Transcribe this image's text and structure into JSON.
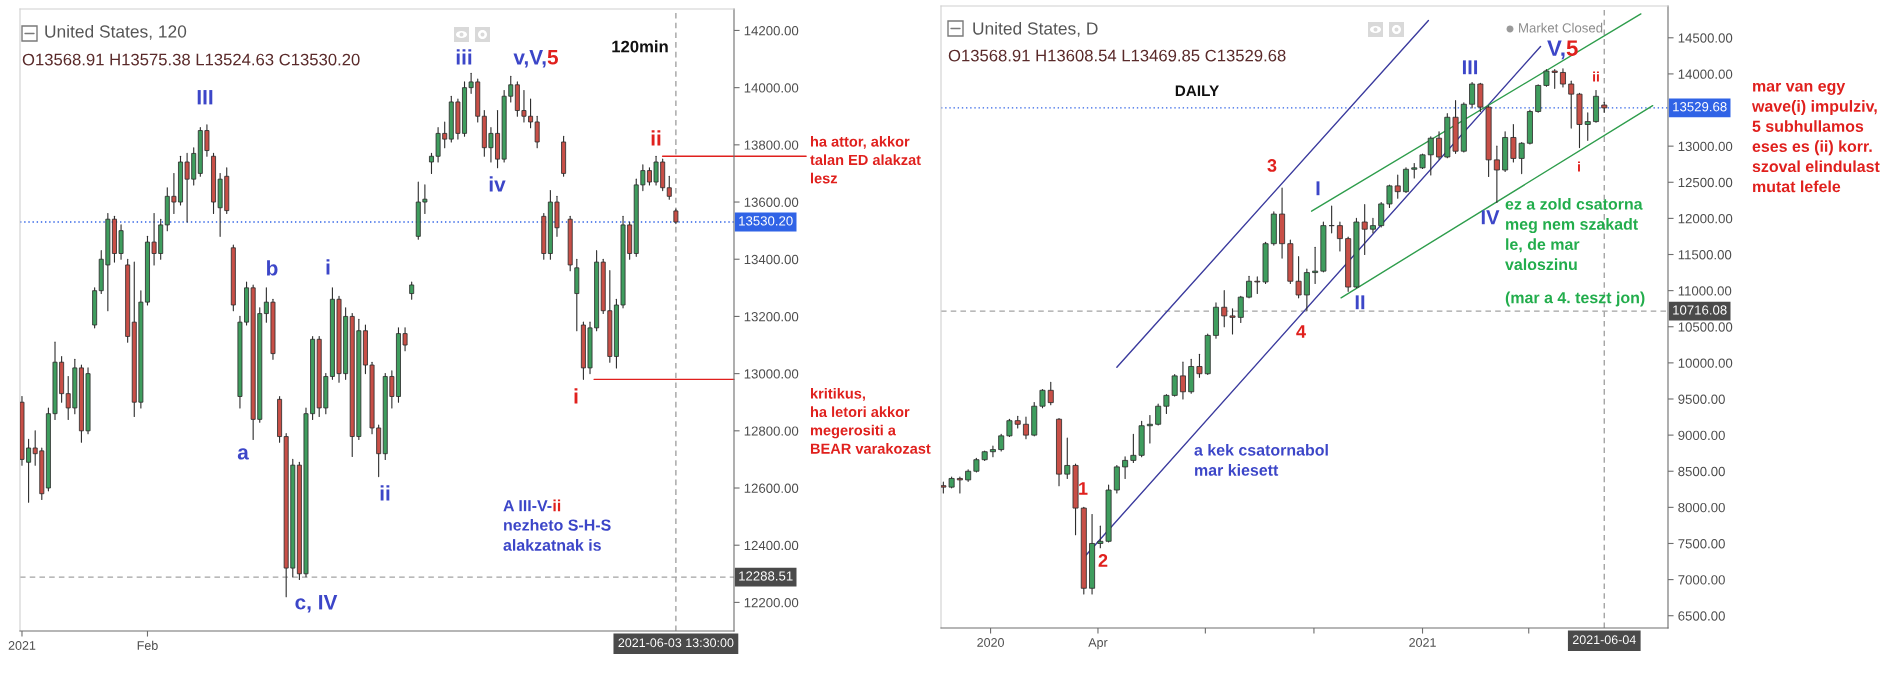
{
  "chart_data": [
    {
      "type": "candlestick",
      "title": "United States, 120",
      "subtitle": "O13568.91 H13575.38 L13524.63 C13530.20",
      "categories": [
        "2021",
        null,
        null,
        null,
        null,
        null,
        null,
        null,
        null,
        null,
        null,
        null,
        null,
        null,
        null,
        null,
        null,
        null,
        null,
        "Feb",
        null,
        null,
        null,
        null,
        null,
        null,
        null,
        null,
        null,
        null,
        null,
        null,
        null,
        null,
        null,
        null,
        null,
        null,
        null,
        null,
        null,
        null,
        null,
        null,
        null,
        null,
        null,
        null,
        null,
        null,
        null,
        null,
        null,
        null,
        null,
        null,
        null,
        null,
        null,
        null,
        null,
        null,
        null,
        null,
        null,
        null,
        null,
        null,
        null,
        null,
        null,
        null,
        null,
        null,
        null,
        null,
        null,
        null,
        null,
        null,
        null,
        null,
        null,
        null,
        null,
        null,
        null,
        null,
        null,
        null,
        null,
        null,
        null,
        null,
        null,
        null,
        null,
        null,
        null,
        "2021-06-03 13:30:00"
      ],
      "ohlc": [
        [
          12900,
          12920,
          12680,
          12700
        ],
        [
          12690,
          12770,
          12550,
          12740
        ],
        [
          12740,
          12800,
          12680,
          12720
        ],
        [
          12730,
          12740,
          12560,
          12580
        ],
        [
          12600,
          12880,
          12590,
          12860
        ],
        [
          12860,
          13110,
          12840,
          13040
        ],
        [
          13040,
          13060,
          12900,
          12930
        ],
        [
          12930,
          12990,
          12840,
          12880
        ],
        [
          12880,
          13050,
          12860,
          13020
        ],
        [
          13020,
          13030,
          12760,
          12800
        ],
        [
          12800,
          13020,
          12790,
          13000
        ],
        [
          13170,
          13300,
          13160,
          13290
        ],
        [
          13290,
          13430,
          13280,
          13400
        ],
        [
          13380,
          13560,
          13220,
          13540
        ],
        [
          13540,
          13550,
          13390,
          13420
        ],
        [
          13420,
          13520,
          13400,
          13500
        ],
        [
          13380,
          13400,
          13110,
          13130
        ],
        [
          13180,
          13390,
          12850,
          12900
        ],
        [
          12900,
          13290,
          12880,
          13250
        ],
        [
          13250,
          13480,
          13240,
          13460
        ],
        [
          13460,
          13560,
          13380,
          13420
        ],
        [
          13420,
          13540,
          13400,
          13520
        ],
        [
          13520,
          13650,
          13500,
          13620
        ],
        [
          13620,
          13700,
          13560,
          13600
        ],
        [
          13600,
          13760,
          13590,
          13740
        ],
        [
          13740,
          13770,
          13530,
          13680
        ],
        [
          13680,
          13790,
          13660,
          13770
        ],
        [
          13700,
          13860,
          13690,
          13850
        ],
        [
          13850,
          13870,
          13760,
          13780
        ],
        [
          13760,
          13770,
          13560,
          13600
        ],
        [
          13580,
          13700,
          13480,
          13680
        ],
        [
          13690,
          13720,
          13560,
          13570
        ],
        [
          13440,
          13450,
          13220,
          13240
        ],
        [
          12920,
          13200,
          12880,
          13180
        ],
        [
          13180,
          13320,
          13170,
          13300
        ],
        [
          13300,
          13310,
          12770,
          12840
        ],
        [
          12840,
          13230,
          12830,
          13210
        ],
        [
          13210,
          13300,
          13180,
          13250
        ],
        [
          13250,
          13260,
          13050,
          13070
        ],
        [
          12910,
          12920,
          12760,
          12780
        ],
        [
          12780,
          12790,
          12220,
          12320
        ],
        [
          12320,
          12700,
          12290,
          12680
        ],
        [
          12680,
          12690,
          12280,
          12300
        ],
        [
          12300,
          12880,
          12290,
          12860
        ],
        [
          12860,
          13130,
          12840,
          13120
        ],
        [
          13120,
          13130,
          12850,
          12880
        ],
        [
          12880,
          13000,
          12860,
          12990
        ],
        [
          12990,
          13300,
          12980,
          13260
        ],
        [
          13260,
          13270,
          12970,
          13000
        ],
        [
          13000,
          13230,
          12980,
          13200
        ],
        [
          13200,
          13210,
          12710,
          12780
        ],
        [
          12780,
          13190,
          12770,
          13150
        ],
        [
          13150,
          13170,
          13000,
          13030
        ],
        [
          13030,
          13040,
          12790,
          12810
        ],
        [
          12810,
          12820,
          12640,
          12720
        ],
        [
          12720,
          13000,
          12700,
          12990
        ],
        [
          12990,
          13010,
          12880,
          12920
        ],
        [
          12920,
          13160,
          12900,
          13140
        ],
        [
          13140,
          13160,
          13080,
          13100
        ],
        [
          13280,
          13320,
          13260,
          13310
        ],
        [
          13480,
          13670,
          13470,
          13600
        ],
        [
          13600,
          13660,
          13560,
          13610
        ],
        [
          13740,
          13770,
          13700,
          13760
        ],
        [
          13760,
          13860,
          13740,
          13840
        ],
        [
          13840,
          13880,
          13790,
          13820
        ],
        [
          13820,
          13970,
          13810,
          13950
        ],
        [
          13950,
          13960,
          13820,
          13840
        ],
        [
          13840,
          14020,
          13830,
          14000
        ],
        [
          14000,
          14050,
          13980,
          14020
        ],
        [
          14020,
          14030,
          13880,
          13900
        ],
        [
          13900,
          13920,
          13760,
          13790
        ],
        [
          13790,
          13860,
          13740,
          13840
        ],
        [
          13840,
          13920,
          13720,
          13750
        ],
        [
          13750,
          13990,
          13740,
          13970
        ],
        [
          13970,
          14040,
          13950,
          14010
        ],
        [
          14010,
          14020,
          13900,
          13920
        ],
        [
          13920,
          13990,
          13880,
          13900
        ],
        [
          13900,
          13960,
          13860,
          13880
        ],
        [
          13880,
          13900,
          13790,
          13810
        ],
        [
          13550,
          13560,
          13400,
          13420
        ],
        [
          13420,
          13640,
          13400,
          13600
        ],
        [
          13600,
          13620,
          13480,
          13510
        ],
        [
          13810,
          13830,
          13690,
          13700
        ],
        [
          13540,
          13550,
          13360,
          13380
        ],
        [
          13280,
          13400,
          13150,
          13370
        ],
        [
          13170,
          13180,
          12980,
          13020
        ],
        [
          13020,
          13180,
          13000,
          13160
        ],
        [
          13160,
          13430,
          13150,
          13390
        ],
        [
          13390,
          13400,
          13210,
          13220
        ],
        [
          13220,
          13360,
          13040,
          13060
        ],
        [
          13060,
          13260,
          13020,
          13240
        ],
        [
          13240,
          13550,
          13230,
          13520
        ],
        [
          13520,
          13530,
          13400,
          13420
        ],
        [
          13420,
          13680,
          13410,
          13660
        ],
        [
          13660,
          13730,
          13640,
          13710
        ],
        [
          13710,
          13720,
          13660,
          13670
        ],
        [
          13670,
          13760,
          13660,
          13740
        ],
        [
          13740,
          13750,
          13640,
          13650
        ],
        [
          13650,
          13690,
          13610,
          13620
        ],
        [
          13568.91,
          13575.38,
          13524.63,
          13530.2
        ]
      ],
      "ylim": [
        12100,
        14275
      ],
      "yticks": [
        {
          "value": 12200,
          "label": "12200.00"
        },
        {
          "value": 12400,
          "label": "12400.00"
        },
        {
          "value": 12600,
          "label": "12600.00"
        },
        {
          "value": 12800,
          "label": "12800.00"
        },
        {
          "value": 13000,
          "label": "13000.00"
        },
        {
          "value": 13200,
          "label": "13200.00"
        },
        {
          "value": 13400,
          "label": "13400.00"
        },
        {
          "value": 13600,
          "label": "13600.00"
        },
        {
          "value": 13800,
          "label": "13800.00"
        },
        {
          "value": 14000,
          "label": "14000.00"
        },
        {
          "value": 14200,
          "label": "14200.00"
        }
      ],
      "ref_lines": [
        {
          "axis": "y",
          "value": 13530.2,
          "label": "13530.20",
          "color": "#3063e6",
          "line_style": "dotted"
        },
        {
          "axis": "y",
          "value": 12288.51,
          "label": "12288.51",
          "color": "#a3a3a3",
          "line_style": "dashed"
        },
        {
          "axis": "x",
          "value": "2021-06-03 13:30:00",
          "color": "#a3a3a3",
          "line_style": "dashed"
        },
        {
          "axis": "y",
          "value": 13760,
          "label": "ha attor, akkor\ntalan ED alakzat\nlesz",
          "color": "#e0201d"
        },
        {
          "axis": "y",
          "value": 12980,
          "label": "kritikus,\nha letori akkor\nmegerositi a\nBEAR varakozast",
          "color": "#e0201d"
        }
      ],
      "annotations": [
        "III",
        "a",
        "b",
        "c, IV",
        "i",
        "ii",
        "iii",
        "iv",
        "v,V,",
        "5",
        "i",
        "ii",
        "120min",
        "A III-V-",
        "ii",
        "nezheto S-H-S\nalakzatnak is"
      ]
    },
    {
      "type": "candlestick",
      "title": "United States, D",
      "subtitle": "O13568.91 H13608.54 L13469.85 C13529.68",
      "x": [
        "2019-11-22",
        "2019-11-29",
        "2019-12-06",
        "2019-12-13",
        "2019-12-20",
        "2019-12-27",
        "2020-01-03",
        "2020-01-10",
        "2020-01-17",
        "2020-01-24",
        "2020-01-31",
        "2020-02-07",
        "2020-02-14",
        "2020-02-21",
        "2020-02-28",
        "2020-03-06",
        "2020-03-13",
        "2020-03-20",
        "2020-03-27",
        "2020-04-03",
        "2020-04-10",
        "2020-04-17",
        "2020-04-24",
        "2020-05-01",
        "2020-05-08",
        "2020-05-15",
        "2020-05-22",
        "2020-05-29",
        "2020-06-05",
        "2020-06-12",
        "2020-06-19",
        "2020-06-26",
        "2020-07-03",
        "2020-07-10",
        "2020-07-17",
        "2020-07-24",
        "2020-07-31",
        "2020-08-07",
        "2020-08-14",
        "2020-08-21",
        "2020-08-28",
        "2020-09-04",
        "2020-09-11",
        "2020-09-18",
        "2020-09-25",
        "2020-10-02",
        "2020-10-09",
        "2020-10-16",
        "2020-10-23",
        "2020-10-30",
        "2020-11-06",
        "2020-11-13",
        "2020-11-20",
        "2020-11-27",
        "2020-12-04",
        "2020-12-11",
        "2020-12-18",
        "2020-12-25",
        "2021-01-01",
        "2021-01-08",
        "2021-01-15",
        "2021-01-22",
        "2021-01-29",
        "2021-02-05",
        "2021-02-12",
        "2021-02-19",
        "2021-02-26",
        "2021-03-05",
        "2021-03-12",
        "2021-03-19",
        "2021-03-26",
        "2021-04-02",
        "2021-04-09",
        "2021-04-16",
        "2021-04-23",
        "2021-04-30",
        "2021-05-07",
        "2021-05-14",
        "2021-05-21",
        "2021-05-28",
        "2021-06-04"
      ],
      "ohlc": [
        [
          8300,
          8350,
          8200,
          8280
        ],
        [
          8280,
          8420,
          8270,
          8400
        ],
        [
          8400,
          8420,
          8200,
          8380
        ],
        [
          8380,
          8520,
          8360,
          8500
        ],
        [
          8500,
          8680,
          8490,
          8660
        ],
        [
          8660,
          8780,
          8650,
          8770
        ],
        [
          8770,
          8850,
          8700,
          8800
        ],
        [
          8800,
          9010,
          8780,
          8990
        ],
        [
          8990,
          9220,
          8980,
          9200
        ],
        [
          9200,
          9260,
          9100,
          9150
        ],
        [
          9150,
          9250,
          8950,
          9000
        ],
        [
          9000,
          9450,
          8990,
          9400
        ],
        [
          9400,
          9630,
          9380,
          9620
        ],
        [
          9620,
          9730,
          9420,
          9450
        ],
        [
          9220,
          9230,
          8300,
          8460
        ],
        [
          8460,
          8960,
          8400,
          8580
        ],
        [
          8580,
          8600,
          7620,
          7990
        ],
        [
          7990,
          8000,
          6800,
          6880
        ],
        [
          6880,
          7900,
          6800,
          7500
        ],
        [
          7500,
          7740,
          7440,
          7530
        ],
        [
          7530,
          8310,
          7520,
          8240
        ],
        [
          8240,
          8580,
          8200,
          8560
        ],
        [
          8560,
          8700,
          8400,
          8650
        ],
        [
          8650,
          9010,
          8620,
          8720
        ],
        [
          8720,
          9190,
          8700,
          9130
        ],
        [
          9130,
          9270,
          8890,
          9150
        ],
        [
          9150,
          9430,
          9140,
          9400
        ],
        [
          9400,
          9560,
          9300,
          9550
        ],
        [
          9550,
          9840,
          9540,
          9820
        ],
        [
          9820,
          10010,
          9500,
          9600
        ],
        [
          9600,
          10050,
          9580,
          9950
        ],
        [
          9950,
          10120,
          9800,
          9850
        ],
        [
          9850,
          10400,
          9840,
          10380
        ],
        [
          10380,
          10830,
          10340,
          10770
        ],
        [
          10770,
          11000,
          10500,
          10650
        ],
        [
          10650,
          10750,
          10400,
          10630
        ],
        [
          10630,
          10920,
          10560,
          10910
        ],
        [
          10910,
          11200,
          10900,
          11130
        ],
        [
          11130,
          11190,
          10960,
          11120
        ],
        [
          11120,
          11670,
          11100,
          11650
        ],
        [
          11650,
          12090,
          11630,
          12060
        ],
        [
          12060,
          12420,
          11450,
          11650
        ],
        [
          11650,
          11700,
          11100,
          11130
        ],
        [
          11130,
          11470,
          10900,
          10940
        ],
        [
          10940,
          11300,
          10720,
          11250
        ],
        [
          11250,
          11600,
          11100,
          11270
        ],
        [
          11270,
          11950,
          11260,
          11900
        ],
        [
          11900,
          12170,
          11800,
          11900
        ],
        [
          11900,
          11950,
          11550,
          11720
        ],
        [
          11720,
          11740,
          10990,
          11050
        ],
        [
          11050,
          12000,
          11040,
          11950
        ],
        [
          11950,
          12190,
          11500,
          11850
        ],
        [
          11850,
          12000,
          11800,
          11900
        ],
        [
          11900,
          12220,
          11880,
          12200
        ],
        [
          12200,
          12460,
          12150,
          12450
        ],
        [
          12450,
          12600,
          12280,
          12370
        ],
        [
          12370,
          12700,
          12360,
          12680
        ],
        [
          12680,
          12760,
          12560,
          12700
        ],
        [
          12700,
          12890,
          12690,
          12880
        ],
        [
          12880,
          13130,
          12600,
          13110
        ],
        [
          13110,
          13200,
          12820,
          12850
        ],
        [
          12850,
          13450,
          12840,
          13400
        ],
        [
          13400,
          13630,
          12900,
          12930
        ],
        [
          12930,
          13600,
          12920,
          13580
        ],
        [
          13580,
          13880,
          13530,
          13860
        ],
        [
          13860,
          13870,
          13480,
          13540
        ],
        [
          13540,
          13560,
          12580,
          12810
        ],
        [
          12810,
          13000,
          12220,
          12670
        ],
        [
          12670,
          13200,
          12650,
          13120
        ],
        [
          13120,
          13300,
          12780,
          12830
        ],
        [
          12830,
          13050,
          12620,
          13040
        ],
        [
          13040,
          13500,
          13030,
          13480
        ],
        [
          13480,
          13850,
          13470,
          13840
        ],
        [
          13840,
          14060,
          13830,
          14040
        ],
        [
          14040,
          14060,
          13800,
          14020
        ],
        [
          14020,
          14070,
          13820,
          13860
        ],
        [
          13860,
          13900,
          13250,
          13720
        ],
        [
          13720,
          13730,
          12980,
          13300
        ],
        [
          13300,
          13460,
          13080,
          13340
        ],
        [
          13340,
          13770,
          13330,
          13690
        ],
        [
          13568.91,
          13608.54,
          13469.85,
          13529.68
        ]
      ],
      "xlim": [
        "2019-11-20",
        "2021-07-28"
      ],
      "xticks": [
        {
          "value": "2020-01-01",
          "label": "2020"
        },
        {
          "value": "2020-04-01",
          "label": "Apr"
        },
        {
          "value": "2020-07-01",
          "label": null
        },
        {
          "value": "2020-10-01",
          "label": null
        },
        {
          "value": "2021-01-01",
          "label": "2021"
        },
        {
          "value": "2021-04-01",
          "label": null
        }
      ],
      "ylim": [
        6330,
        14940
      ],
      "yticks": [
        {
          "value": 6500,
          "label": "6500.00"
        },
        {
          "value": 7000,
          "label": "7000.00"
        },
        {
          "value": 7500,
          "label": "7500.00"
        },
        {
          "value": 8000,
          "label": "8000.00"
        },
        {
          "value": 8500,
          "label": "8500.00"
        },
        {
          "value": 9000,
          "label": "9000.00"
        },
        {
          "value": 9500,
          "label": "9500.00"
        },
        {
          "value": 10000,
          "label": "10000.00"
        },
        {
          "value": 10500,
          "label": "10500.00"
        },
        {
          "value": 11000,
          "label": "11000.00"
        },
        {
          "value": 11500,
          "label": "11500.00"
        },
        {
          "value": 12000,
          "label": "12000.00"
        },
        {
          "value": 12500,
          "label": "12500.00"
        },
        {
          "value": 13000,
          "label": "13000.00"
        },
        {
          "value": 14000,
          "label": "14000.00"
        },
        {
          "value": 14500,
          "label": "14500.00"
        }
      ],
      "series": [
        {
          "type": "line",
          "x": [
            "2020-04-17",
            "2021-01-06"
          ],
          "values": [
            9940,
            14740
          ],
          "color": "#3b3b9e"
        },
        {
          "type": "line",
          "x": [
            "2020-03-22",
            "2021-04-11"
          ],
          "values": [
            7340,
            14380
          ],
          "color": "#3b3b9e"
        },
        {
          "type": "line",
          "x": [
            "2020-09-29",
            "2021-07-05"
          ],
          "values": [
            12100,
            14830
          ],
          "color": "#2e9d4c"
        },
        {
          "type": "line",
          "x": [
            "2020-10-24",
            "2021-07-15"
          ],
          "values": [
            10900,
            13560
          ],
          "color": "#2e9d4c"
        }
      ],
      "ref_lines": [
        {
          "axis": "y",
          "value": 13529.68,
          "label": "13529.68",
          "color": "#3063e6",
          "line_style": "dotted"
        },
        {
          "axis": "y",
          "value": 10716.08,
          "label": "10716.08",
          "color": "#a3a3a3",
          "line_style": "dashed"
        },
        {
          "axis": "x",
          "value": "2021-06-04",
          "label": "2021-06-04",
          "color": "#a3a3a3",
          "line_style": "dashed"
        }
      ],
      "annotations": [
        "1",
        "2",
        "3",
        "4",
        "I",
        "II",
        "III",
        "IV",
        "V,",
        "5",
        "i",
        "ii",
        "DAILY",
        "a kek csatornabol\nmar kiesett",
        "ez a zold csatorna\nmeg nem szakadt\nle, de mar\nvaloszinu",
        "(mar a 4. teszt jon)",
        "Market Closed",
        "mar van egy\nwave(i) impulziv,\n5 subhullamos\neses es (ii) korr.\nszoval elindulast\nmutat lefele"
      ]
    }
  ]
}
